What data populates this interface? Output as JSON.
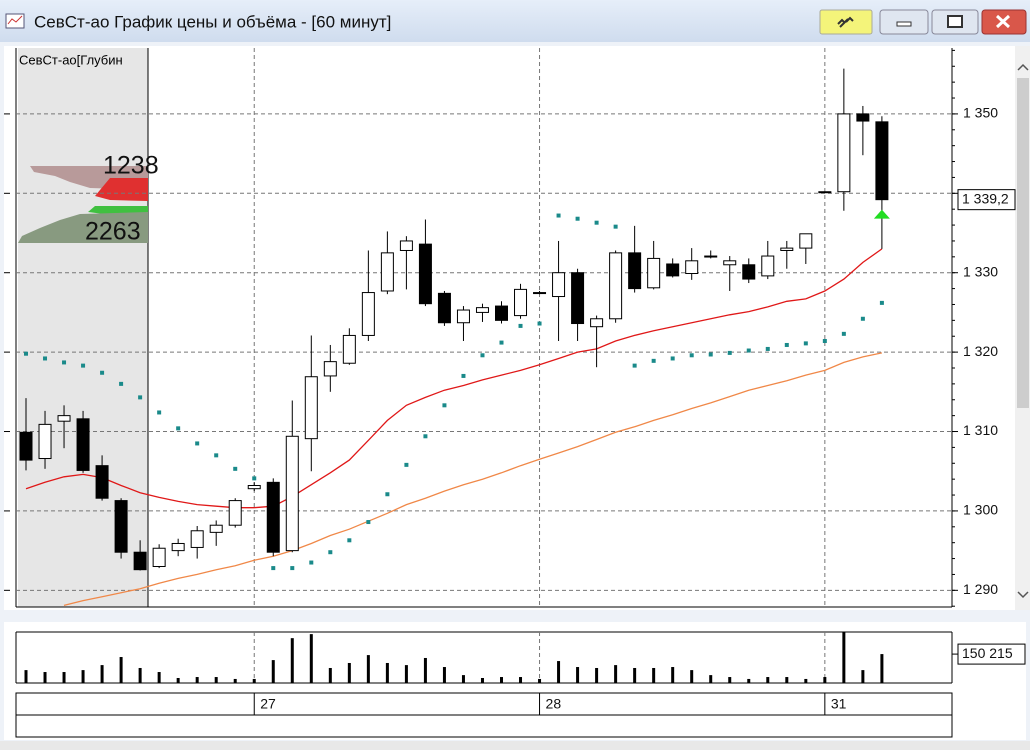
{
  "window": {
    "title": "СевСт-ао График цены и объёма - [60 минут]"
  },
  "chart_data": {
    "type": "candlestick",
    "depth_label": "СевСт-ао[Глубин",
    "depth_values": [
      1238,
      2263
    ],
    "categories": [
      null,
      null,
      null,
      null,
      null,
      null,
      null,
      null,
      null,
      null,
      null,
      null,
      "27",
      null,
      null,
      null,
      null,
      null,
      null,
      null,
      null,
      null,
      null,
      null,
      null,
      null,
      null,
      "28",
      null,
      null,
      null,
      null,
      null,
      null,
      null,
      null,
      null,
      null,
      null,
      null,
      null,
      null,
      "31",
      null,
      null,
      null
    ],
    "open": [
      1309.9,
      1306.6,
      1311.3,
      1311.6,
      1305.7,
      1301.3,
      1294.8,
      1293.0,
      1295.0,
      1295.4,
      1297.3,
      1298.2,
      1302.8,
      1303.6,
      1295.0,
      1309.1,
      1317.0,
      1318.6,
      1322.1,
      1327.7,
      1332.8,
      1333.6,
      1327.4,
      1323.7,
      1325.0,
      1325.8,
      1324.6,
      1327.5,
      1327.0,
      1330.0,
      1323.2,
      1324.2,
      1332.5,
      1328.1,
      1331.1,
      1329.9,
      1332.1,
      1331.0,
      1331.0,
      1329.6,
      1332.8,
      1333.1,
      1340.2,
      1340.2,
      1350.0,
      1349.0
    ],
    "high": [
      1314.2,
      1312.6,
      1313.3,
      1312.6,
      1307.0,
      1301.6,
      1296.3,
      1295.8,
      1296.5,
      1298.1,
      1298.8,
      1301.6,
      1303.6,
      1304.1,
      1313.9,
      1322.1,
      1320.9,
      1323.0,
      1332.8,
      1335.2,
      1334.6,
      1336.7,
      1327.7,
      1325.8,
      1326.1,
      1326.4,
      1328.6,
      1327.7,
      1334.0,
      1330.5,
      1324.6,
      1332.8,
      1335.9,
      1334.0,
      1331.8,
      1333.1,
      1332.8,
      1332.1,
      1331.8,
      1334.0,
      1334.0,
      1334.9,
      1340.2,
      1355.7,
      1351.0,
      1349.7
    ],
    "low": [
      1305.1,
      1305.3,
      1307.9,
      1304.8,
      1301.3,
      1294.0,
      1292.5,
      1292.8,
      1294.3,
      1294.0,
      1295.6,
      1297.9,
      1302.5,
      1294.3,
      1294.8,
      1305.0,
      1315.0,
      1318.4,
      1321.4,
      1327.3,
      1327.9,
      1325.8,
      1323.3,
      1321.4,
      1323.8,
      1323.6,
      1324.2,
      1327.3,
      1321.4,
      1321.4,
      1318.1,
      1323.7,
      1327.5,
      1327.9,
      1329.4,
      1329.1,
      1331.8,
      1327.7,
      1328.7,
      1329.2,
      1330.5,
      1331.1,
      1340.2,
      1337.8,
      1344.8,
      1333.0
    ],
    "close": [
      1306.4,
      1310.9,
      1312.0,
      1305.1,
      1301.6,
      1294.8,
      1292.6,
      1295.3,
      1295.9,
      1297.5,
      1298.2,
      1301.3,
      1303.2,
      1294.8,
      1309.4,
      1316.9,
      1318.8,
      1322.1,
      1327.5,
      1332.5,
      1334.0,
      1326.1,
      1323.7,
      1325.3,
      1325.6,
      1324.0,
      1327.9,
      1327.5,
      1330.0,
      1323.6,
      1324.2,
      1332.5,
      1328.0,
      1331.8,
      1329.6,
      1331.5,
      1332.1,
      1331.5,
      1329.2,
      1332.1,
      1333.1,
      1334.9,
      1340.2,
      1350.0,
      1349.1,
      1339.2
    ],
    "up_color": "#ffffff",
    "down_color": "#000000",
    "lines": [
      {
        "color": "#e01818",
        "values": [
          1302.8,
          1303.6,
          1304.3,
          1304.6,
          1304.2,
          1303.2,
          1302.3,
          1301.7,
          1301.2,
          1300.8,
          1300.6,
          1300.4,
          1300.4,
          1300.6,
          1301.8,
          1303.3,
          1304.8,
          1306.4,
          1308.9,
          1311.4,
          1313.3,
          1314.3,
          1315.2,
          1315.8,
          1316.5,
          1317.1,
          1317.7,
          1318.4,
          1319.2,
          1320.0,
          1320.4,
          1321.4,
          1322.1,
          1322.7,
          1323.2,
          1323.7,
          1324.2,
          1324.7,
          1325.1,
          1325.7,
          1326.4,
          1326.7,
          1327.7,
          1329.2,
          1331.3,
          1333.0
        ]
      },
      {
        "color": "#f08848",
        "values": [
          null,
          null,
          1288.1,
          1288.7,
          1289.2,
          1289.7,
          1290.2,
          1290.9,
          1291.5,
          1292.0,
          1292.6,
          1293.1,
          1293.8,
          1294.3,
          1295.0,
          1295.9,
          1296.9,
          1297.7,
          1298.7,
          1299.7,
          1300.8,
          1301.6,
          1302.5,
          1303.3,
          1304.0,
          1304.8,
          1305.7,
          1306.5,
          1307.3,
          1308.1,
          1309.0,
          1309.9,
          1310.6,
          1311.4,
          1312.1,
          1312.9,
          1313.6,
          1314.4,
          1315.2,
          1315.8,
          1316.4,
          1317.1,
          1317.7,
          1318.7,
          1319.4,
          1319.9
        ]
      }
    ],
    "sar": {
      "color": "#1a8a8a",
      "values": [
        1319.8,
        1319.2,
        1318.7,
        1318.3,
        1317.4,
        1316.0,
        1314.3,
        1312.4,
        1310.4,
        1308.5,
        1307.0,
        1305.3,
        1304.1,
        1292.8,
        1292.8,
        1293.5,
        1294.8,
        1296.3,
        1298.6,
        1302.1,
        1305.8,
        1309.4,
        1313.3,
        1317.0,
        1319.6,
        1321.2,
        1323.3,
        1323.6,
        1337.2,
        1336.8,
        1336.3,
        1335.8,
        1318.3,
        1318.9,
        1319.2,
        1319.6,
        1319.7,
        1319.9,
        1320.2,
        1320.4,
        1320.9,
        1321.1,
        1321.4,
        1322.3,
        1324.2,
        1326.2
      ]
    },
    "ylim": [
      1287.9,
      1358.3
    ],
    "yticks": [
      {
        "value": 1290,
        "label": "1 290"
      },
      {
        "value": 1300,
        "label": "1 300"
      },
      {
        "value": 1310,
        "label": "1 310"
      },
      {
        "value": 1320,
        "label": "1 320"
      },
      {
        "value": 1330,
        "label": "1 330"
      },
      {
        "value": 1340,
        "label": ""
      },
      {
        "value": 1350,
        "label": "1 350"
      }
    ],
    "last_price": {
      "value": 1339.2,
      "label": "1 339,2"
    },
    "grid": true,
    "volume": {
      "color": "#000000",
      "values": [
        67000,
        57000,
        57000,
        67000,
        93000,
        135000,
        78000,
        57000,
        26000,
        31000,
        31000,
        21000,
        21000,
        119000,
        233000,
        254000,
        78000,
        104000,
        145000,
        104000,
        93000,
        130000,
        83000,
        41000,
        26000,
        31000,
        31000,
        21000,
        114000,
        83000,
        78000,
        93000,
        78000,
        78000,
        83000,
        67000,
        41000,
        31000,
        21000,
        31000,
        31000,
        21000,
        31000,
        264000,
        67000,
        150215
      ],
      "ylim": [
        0,
        265000
      ],
      "yticks": [
        {
          "value": 150215,
          "label": "150 215"
        }
      ]
    }
  }
}
